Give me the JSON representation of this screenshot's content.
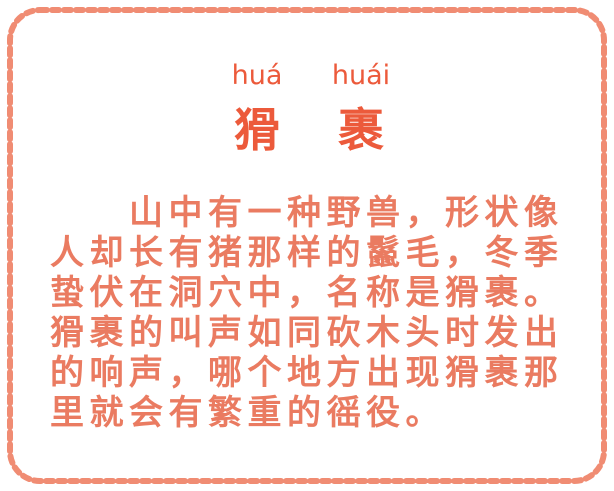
{
  "theme": {
    "border_color": "#f08c73",
    "title_color": "#ec5a3b",
    "body_color": "#ea7b61"
  },
  "title": {
    "pinyin": [
      "huá",
      "huái"
    ],
    "characters": [
      "猾",
      "裹"
    ]
  },
  "body": {
    "lines": [
      "山中有一种野兽，形状像",
      "人却长有猪那样的鬣毛，冬季",
      "蛰伏在洞穴中，名称是猾裹。",
      "猾裹的叫声如同砍木头时发出",
      "的响声，哪个地方出现猾裹那",
      "里就会有繁重的徭役。"
    ]
  }
}
